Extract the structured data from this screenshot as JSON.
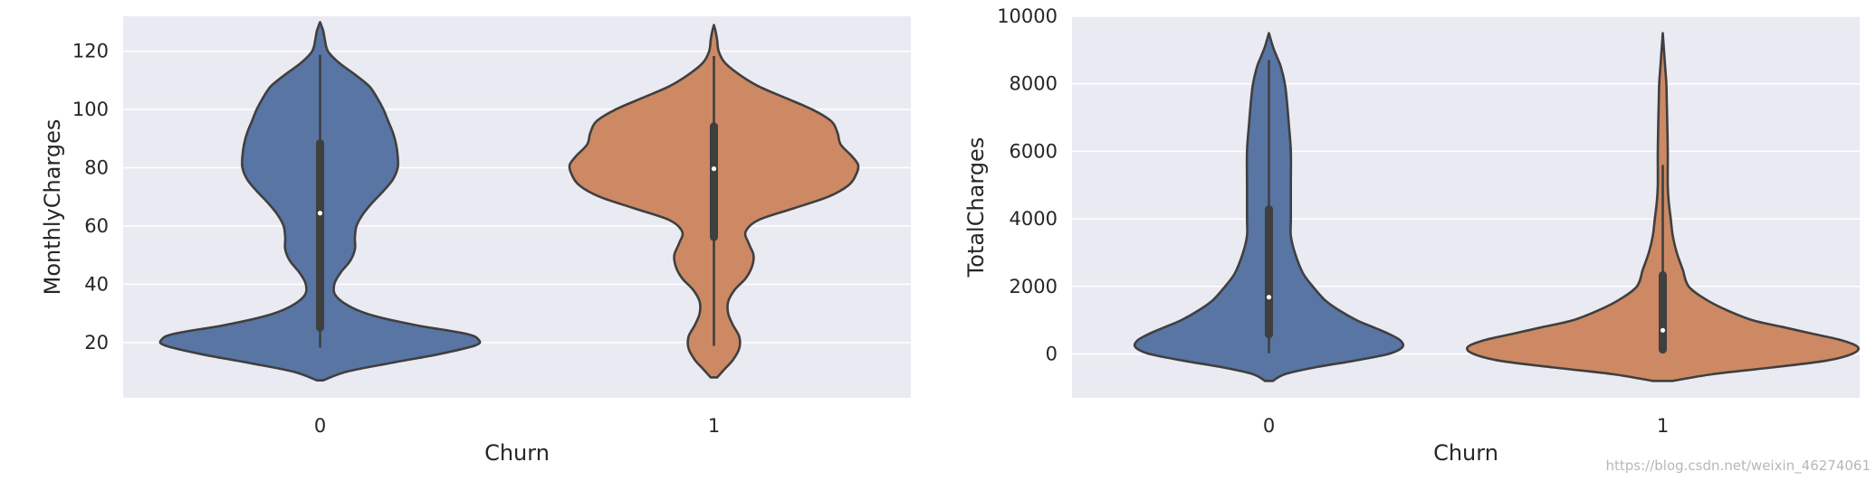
{
  "chart_data": [
    {
      "type": "violin",
      "xlabel": "Churn",
      "ylabel": "MonthlyCharges",
      "categories": [
        "0",
        "1"
      ],
      "ylim": [
        1,
        132
      ],
      "yticks": [
        20,
        40,
        60,
        80,
        100,
        120
      ],
      "grid": true,
      "violins": [
        {
          "category": "0",
          "color": "#5875a4",
          "range": [
            7,
            130
          ],
          "whisker": [
            18.25,
            118.75
          ],
          "quartiles": [
            25.1,
            88.4
          ],
          "median": 64.4,
          "density": [
            [
              7,
              0.02
            ],
            [
              10,
              0.17
            ],
            [
              13,
              0.45
            ],
            [
              16,
              0.75
            ],
            [
              19,
              0.98
            ],
            [
              21,
              1.0
            ],
            [
              23,
              0.92
            ],
            [
              26,
              0.6
            ],
            [
              29,
              0.35
            ],
            [
              32,
              0.2
            ],
            [
              36,
              0.1
            ],
            [
              40,
              0.09
            ],
            [
              44,
              0.13
            ],
            [
              48,
              0.19
            ],
            [
              52,
              0.22
            ],
            [
              56,
              0.22
            ],
            [
              60,
              0.23
            ],
            [
              64,
              0.27
            ],
            [
              68,
              0.33
            ],
            [
              72,
              0.4
            ],
            [
              76,
              0.46
            ],
            [
              80,
              0.49
            ],
            [
              84,
              0.49
            ],
            [
              88,
              0.48
            ],
            [
              92,
              0.46
            ],
            [
              96,
              0.43
            ],
            [
              100,
              0.4
            ],
            [
              104,
              0.36
            ],
            [
              108,
              0.31
            ],
            [
              112,
              0.22
            ],
            [
              116,
              0.12
            ],
            [
              120,
              0.05
            ],
            [
              124,
              0.03
            ],
            [
              127,
              0.02
            ],
            [
              130,
              0.0
            ]
          ]
        },
        {
          "category": "1",
          "color": "#cc8963",
          "range": [
            8,
            129
          ],
          "whisker": [
            18.85,
            118.35
          ],
          "quartiles": [
            56.2,
            94.2
          ],
          "median": 79.65,
          "density": [
            [
              8,
              0.02
            ],
            [
              11,
              0.07
            ],
            [
              14,
              0.12
            ],
            [
              18,
              0.16
            ],
            [
              22,
              0.16
            ],
            [
              26,
              0.12
            ],
            [
              30,
              0.09
            ],
            [
              34,
              0.09
            ],
            [
              38,
              0.13
            ],
            [
              42,
              0.2
            ],
            [
              46,
              0.24
            ],
            [
              50,
              0.25
            ],
            [
              54,
              0.22
            ],
            [
              58,
              0.2
            ],
            [
              62,
              0.28
            ],
            [
              66,
              0.5
            ],
            [
              70,
              0.72
            ],
            [
              74,
              0.85
            ],
            [
              78,
              0.9
            ],
            [
              81,
              0.91
            ],
            [
              84,
              0.87
            ],
            [
              88,
              0.8
            ],
            [
              92,
              0.78
            ],
            [
              96,
              0.74
            ],
            [
              100,
              0.62
            ],
            [
              104,
              0.45
            ],
            [
              108,
              0.28
            ],
            [
              112,
              0.16
            ],
            [
              116,
              0.07
            ],
            [
              120,
              0.03
            ],
            [
              124,
              0.02
            ],
            [
              127,
              0.01
            ],
            [
              129,
              0.0
            ]
          ]
        }
      ]
    },
    {
      "type": "violin",
      "xlabel": "Churn",
      "ylabel": "TotalCharges",
      "categories": [
        "0",
        "1"
      ],
      "ylim": [
        -1300,
        10000
      ],
      "yticks": [
        0,
        2000,
        4000,
        6000,
        8000,
        10000
      ],
      "grid": true,
      "violins": [
        {
          "category": "0",
          "color": "#5875a4",
          "range": [
            -800,
            9500
          ],
          "whisker": [
            20,
            8700
          ],
          "quartiles": [
            580,
            4280
          ],
          "median": 1680,
          "density": [
            [
              -800,
              0.02
            ],
            [
              -600,
              0.08
            ],
            [
              -400,
              0.23
            ],
            [
              -200,
              0.43
            ],
            [
              0,
              0.6
            ],
            [
              200,
              0.67
            ],
            [
              400,
              0.66
            ],
            [
              600,
              0.6
            ],
            [
              800,
              0.52
            ],
            [
              1000,
              0.44
            ],
            [
              1300,
              0.35
            ],
            [
              1600,
              0.28
            ],
            [
              2000,
              0.22
            ],
            [
              2400,
              0.17
            ],
            [
              3000,
              0.13
            ],
            [
              3500,
              0.11
            ],
            [
              4000,
              0.11
            ],
            [
              5000,
              0.11
            ],
            [
              6000,
              0.11
            ],
            [
              6800,
              0.1
            ],
            [
              7500,
              0.09
            ],
            [
              8000,
              0.08
            ],
            [
              8500,
              0.06
            ],
            [
              8800,
              0.04
            ],
            [
              9100,
              0.02
            ],
            [
              9500,
              0.0
            ]
          ]
        },
        {
          "category": "1",
          "color": "#cc8963",
          "range": [
            -800,
            9500
          ],
          "whisker": [
            20,
            5600
          ],
          "quartiles": [
            130,
            2330
          ],
          "median": 700,
          "density": [
            [
              -800,
              0.05
            ],
            [
              -600,
              0.25
            ],
            [
              -400,
              0.55
            ],
            [
              -200,
              0.82
            ],
            [
              0,
              0.95
            ],
            [
              200,
              0.98
            ],
            [
              400,
              0.9
            ],
            [
              600,
              0.75
            ],
            [
              800,
              0.6
            ],
            [
              1000,
              0.45
            ],
            [
              1300,
              0.32
            ],
            [
              1600,
              0.22
            ],
            [
              2000,
              0.13
            ],
            [
              2500,
              0.1
            ],
            [
              3000,
              0.07
            ],
            [
              3500,
              0.05
            ],
            [
              4000,
              0.04
            ],
            [
              4500,
              0.03
            ],
            [
              5000,
              0.025
            ],
            [
              6000,
              0.025
            ],
            [
              7000,
              0.022
            ],
            [
              7500,
              0.02
            ],
            [
              8000,
              0.018
            ],
            [
              8500,
              0.012
            ],
            [
              9000,
              0.006
            ],
            [
              9500,
              0.0
            ]
          ]
        }
      ]
    }
  ],
  "watermark": "https://blog.csdn.net/weixin_46274061"
}
